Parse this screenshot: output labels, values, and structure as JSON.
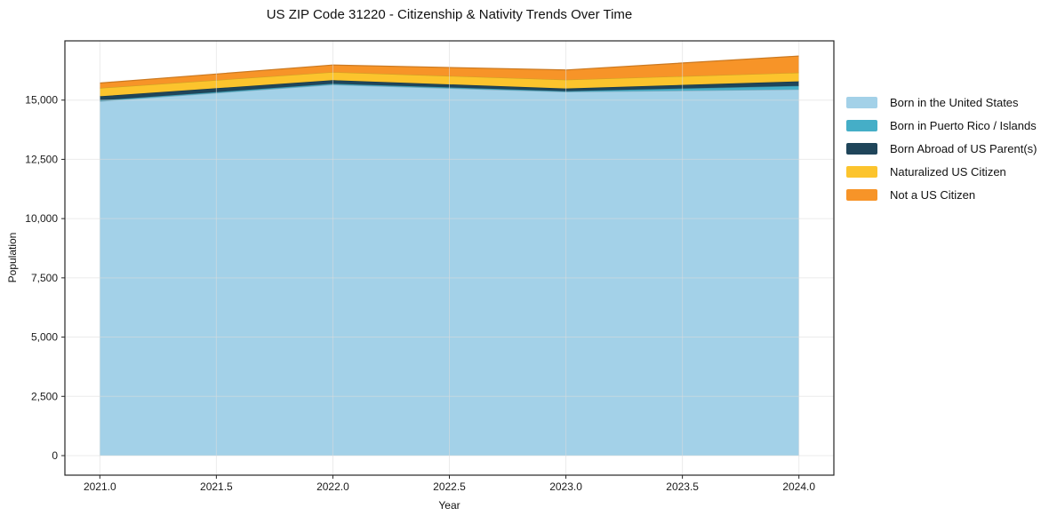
{
  "chart_data": {
    "type": "area",
    "stacked": true,
    "title": "US ZIP Code 31220 - Citizenship & Nativity Trends Over Time",
    "xlabel": "Year",
    "ylabel": "Population",
    "x": [
      2021,
      2022,
      2023,
      2024
    ],
    "series": [
      {
        "name": "Born in the United States",
        "color": "#a3d1e8",
        "values": [
          14950,
          15650,
          15350,
          15450
        ]
      },
      {
        "name": "Born in Puerto Rico / Islands",
        "color": "#45aec7",
        "values": [
          40,
          40,
          30,
          150
        ]
      },
      {
        "name": "Born Abroad of US Parent(s)",
        "color": "#1f455a",
        "values": [
          170,
          150,
          110,
          190
        ]
      },
      {
        "name": "Naturalized US Citizen",
        "color": "#fcc42d",
        "values": [
          350,
          340,
          370,
          370
        ]
      },
      {
        "name": "Not a US Citizen",
        "color": "#f79428",
        "values": [
          210,
          300,
          410,
          700
        ]
      }
    ],
    "xlim": [
      2020.85,
      2024.15
    ],
    "ylim": [
      -825,
      17500
    ],
    "xticks": {
      "values": [
        2021.0,
        2021.5,
        2022.0,
        2022.5,
        2023.0,
        2023.5,
        2024.0
      ],
      "labels": [
        "2021.0",
        "2021.5",
        "2022.0",
        "2022.5",
        "2023.0",
        "2023.5",
        "2024.0"
      ]
    },
    "yticks": {
      "values": [
        0,
        2500,
        5000,
        7500,
        10000,
        12500,
        15000
      ],
      "labels": [
        "0",
        "2,500",
        "5,000",
        "7,500",
        "10,000",
        "12,500",
        "15,000"
      ]
    },
    "grid": true,
    "legend_position": "right",
    "colors": {
      "grid": "#dcdcdc",
      "spine": "#262626",
      "tick_text": "#1a1a1a",
      "background": "#ffffff"
    }
  }
}
